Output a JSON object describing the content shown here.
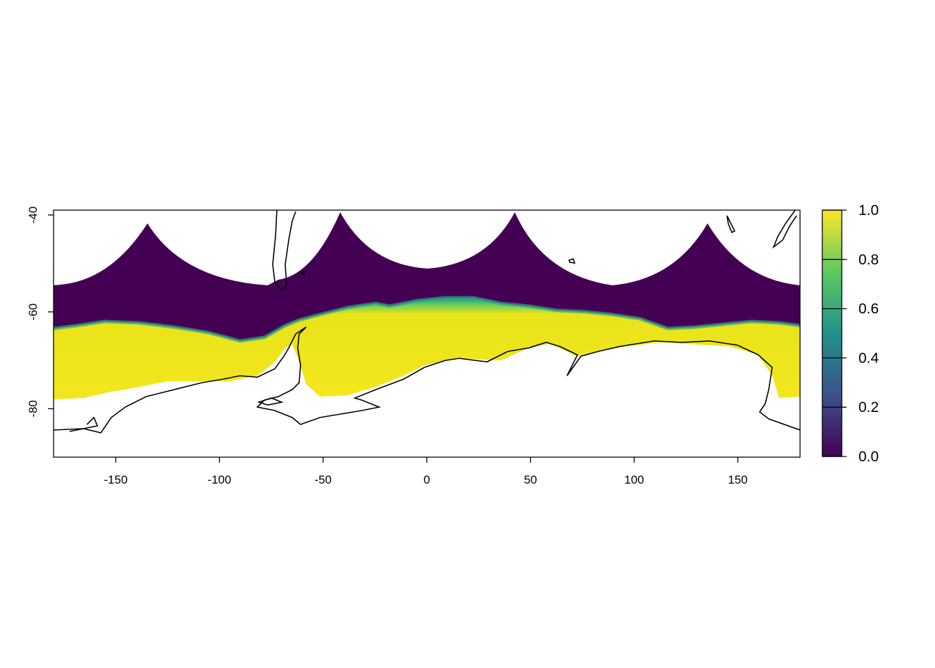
{
  "map": {
    "x_axis": {
      "range": [
        -180,
        180
      ],
      "ticks": [
        {
          "value": -150,
          "label": "-150"
        },
        {
          "value": -100,
          "label": "-100"
        },
        {
          "value": -50,
          "label": "-50"
        },
        {
          "value": 0,
          "label": "0"
        },
        {
          "value": 50,
          "label": "50"
        },
        {
          "value": 100,
          "label": "100"
        },
        {
          "value": 150,
          "label": "150"
        }
      ]
    },
    "y_axis": {
      "range": [
        -90,
        -39
      ],
      "ticks": [
        {
          "value": -40,
          "label": "-40"
        },
        {
          "value": -60,
          "label": "-60"
        },
        {
          "value": -80,
          "label": "-80"
        }
      ]
    },
    "legend": {
      "range": [
        0,
        1
      ],
      "ticks": [
        {
          "value": 0.0,
          "label": "0.0"
        },
        {
          "value": 0.2,
          "label": "0.2"
        },
        {
          "value": 0.4,
          "label": "0.4"
        },
        {
          "value": 0.6,
          "label": "0.6"
        },
        {
          "value": 0.8,
          "label": "0.8"
        },
        {
          "value": 1.0,
          "label": "1.0"
        }
      ],
      "colormap": "viridis",
      "colors": [
        "#440154",
        "#3b528b",
        "#21918c",
        "#5ec962",
        "#fde725"
      ]
    },
    "colors": {
      "ocean_open": "#440154",
      "sea_ice_high": "#f0e51f",
      "ice_edge": "#2aa584",
      "coastline": "#000000"
    }
  }
}
